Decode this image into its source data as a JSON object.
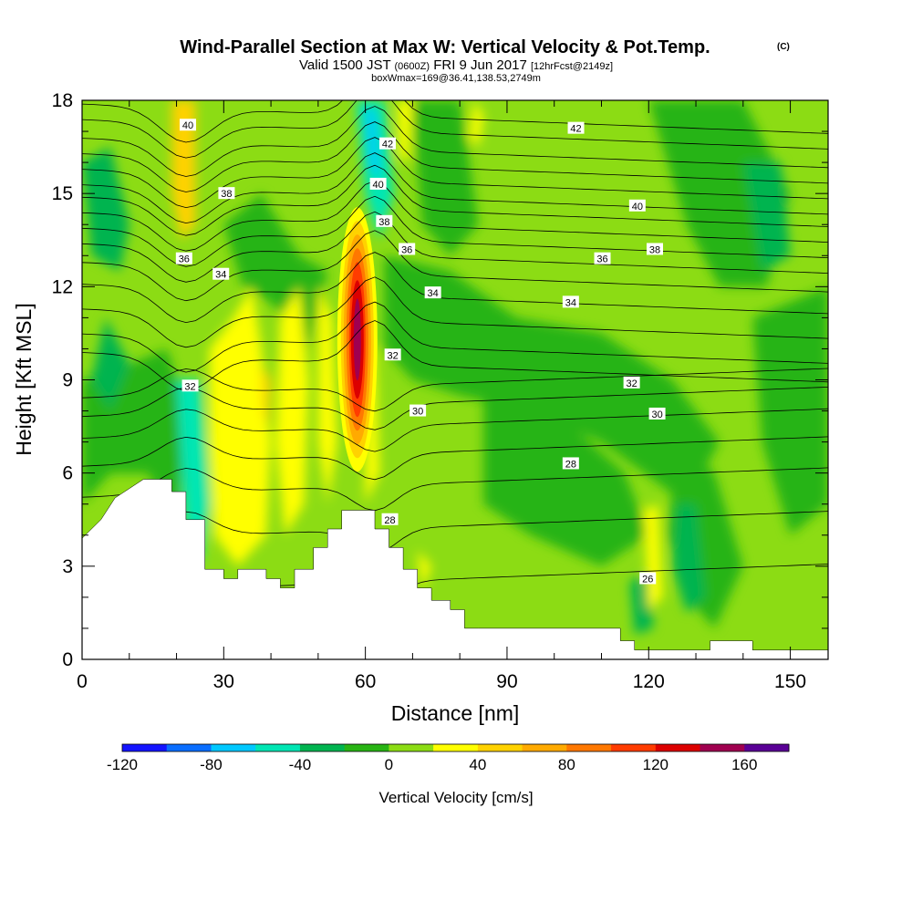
{
  "title": {
    "main": "Wind-Parallel Section at Max W: Vertical Velocity & Pot.Temp.",
    "copyright": "(C)",
    "valid_prefix": "Valid 1500 JST",
    "valid_utc": "(0600Z)",
    "valid_date": "FRI 9 Jun 2017",
    "forecast": "[12hrFcst@2149z]",
    "box": "boxWmax=169@36.41,138.53,2749m"
  },
  "chart_data": {
    "type": "heatmap",
    "xlabel": "Distance [nm]",
    "ylabel": "Height [Kft MSL]",
    "xlim": [
      0,
      158
    ],
    "ylim": [
      0,
      18
    ],
    "x_ticks": [
      0,
      30,
      60,
      90,
      120,
      150
    ],
    "y_ticks": [
      0,
      3,
      6,
      9,
      12,
      15,
      18
    ],
    "colorbar": {
      "title": "Vertical Velocity [cm/s]",
      "levels": [
        -120,
        -100,
        -80,
        -60,
        -40,
        -20,
        0,
        20,
        40,
        60,
        80,
        100,
        120,
        140,
        160,
        180
      ],
      "colors": [
        "#1414ff",
        "#0a6eff",
        "#00c8ff",
        "#00e6b4",
        "#00b450",
        "#28b414",
        "#8cdc14",
        "#ffff00",
        "#ffd200",
        "#ffaa00",
        "#ff7800",
        "#ff3c00",
        "#dc0000",
        "#a00050",
        "#5a0096"
      ],
      "tick_labels": [
        "-120",
        "-80",
        "-40",
        "0",
        "40",
        "80",
        "120",
        "160"
      ]
    },
    "shaded_field": {
      "background_band": "0 to 20",
      "features": [
        {
          "x": 23,
          "y": 5,
          "band": "-60 to -40"
        },
        {
          "x": 8,
          "y": 14,
          "band": "-40 to -20"
        },
        {
          "x": 62,
          "y": 16,
          "band": "-80 to -60"
        },
        {
          "x": 62,
          "y": 15,
          "band": "-60 to -40"
        },
        {
          "x": 22,
          "y": 16.5,
          "band": "60 to 80"
        },
        {
          "x": 58,
          "y": 10,
          "band": "140 to 160"
        },
        {
          "x": 122,
          "y": 3.5,
          "band": "20 to 40"
        },
        {
          "x": 128,
          "y": 3.2,
          "band": "-40 to -20"
        }
      ]
    },
    "contour_field": {
      "name": "potential temperature",
      "labeled_values": [
        26,
        28,
        30,
        32,
        34,
        36,
        38,
        40,
        42
      ],
      "labels": [
        {
          "text": "40",
          "x": 22.4,
          "y": 17.2
        },
        {
          "text": "42",
          "x": 64.7,
          "y": 16.6
        },
        {
          "text": "42",
          "x": 104.6,
          "y": 17.1
        },
        {
          "text": "38",
          "x": 30.6,
          "y": 15.0
        },
        {
          "text": "40",
          "x": 62.7,
          "y": 15.3
        },
        {
          "text": "40",
          "x": 117.6,
          "y": 14.6
        },
        {
          "text": "38",
          "x": 64.0,
          "y": 14.1
        },
        {
          "text": "36",
          "x": 68.8,
          "y": 13.2
        },
        {
          "text": "38",
          "x": 121.3,
          "y": 13.2
        },
        {
          "text": "36",
          "x": 21.6,
          "y": 12.9
        },
        {
          "text": "34",
          "x": 29.4,
          "y": 12.4
        },
        {
          "text": "36",
          "x": 110.2,
          "y": 12.9
        },
        {
          "text": "34",
          "x": 74.3,
          "y": 11.8
        },
        {
          "text": "34",
          "x": 103.5,
          "y": 11.5
        },
        {
          "text": "32",
          "x": 65.8,
          "y": 9.8
        },
        {
          "text": "32",
          "x": 22.9,
          "y": 8.8
        },
        {
          "text": "32",
          "x": 116.4,
          "y": 8.9
        },
        {
          "text": "30",
          "x": 71.1,
          "y": 8.0
        },
        {
          "text": "30",
          "x": 121.8,
          "y": 7.9
        },
        {
          "text": "28",
          "x": 103.5,
          "y": 6.3
        },
        {
          "text": "28",
          "x": 65.2,
          "y": 4.5
        },
        {
          "text": "26",
          "x": 119.8,
          "y": 2.6
        }
      ]
    },
    "terrain": [
      [
        0,
        3.9
      ],
      [
        4,
        4.5
      ],
      [
        7,
        5.2
      ],
      [
        10,
        5.5
      ],
      [
        13,
        5.8
      ],
      [
        19,
        5.8
      ],
      [
        19,
        5.4
      ],
      [
        22,
        5.4
      ],
      [
        22,
        4.5
      ],
      [
        26,
        4.5
      ],
      [
        26,
        2.9
      ],
      [
        30,
        2.9
      ],
      [
        30,
        2.6
      ],
      [
        33,
        2.6
      ],
      [
        33,
        2.9
      ],
      [
        39,
        2.9
      ],
      [
        39,
        2.6
      ],
      [
        42,
        2.6
      ],
      [
        42,
        2.3
      ],
      [
        45,
        2.3
      ],
      [
        45,
        2.9
      ],
      [
        49,
        2.9
      ],
      [
        49,
        3.6
      ],
      [
        52,
        3.6
      ],
      [
        52,
        4.2
      ],
      [
        55,
        4.2
      ],
      [
        55,
        4.8
      ],
      [
        62,
        4.8
      ],
      [
        62,
        4.2
      ],
      [
        65,
        4.2
      ],
      [
        65,
        3.6
      ],
      [
        68,
        3.6
      ],
      [
        68,
        2.9
      ],
      [
        71,
        2.9
      ],
      [
        71,
        2.3
      ],
      [
        74,
        2.3
      ],
      [
        74,
        1.9
      ],
      [
        78,
        1.9
      ],
      [
        78,
        1.6
      ],
      [
        81,
        1.6
      ],
      [
        81,
        1.0
      ],
      [
        84,
        1.0
      ],
      [
        114,
        1.0
      ],
      [
        114,
        0.6
      ],
      [
        117,
        0.6
      ],
      [
        117,
        0.3
      ],
      [
        133,
        0.3
      ],
      [
        133,
        0.6
      ],
      [
        142,
        0.6
      ],
      [
        142,
        0.3
      ],
      [
        158,
        0.3
      ]
    ]
  }
}
